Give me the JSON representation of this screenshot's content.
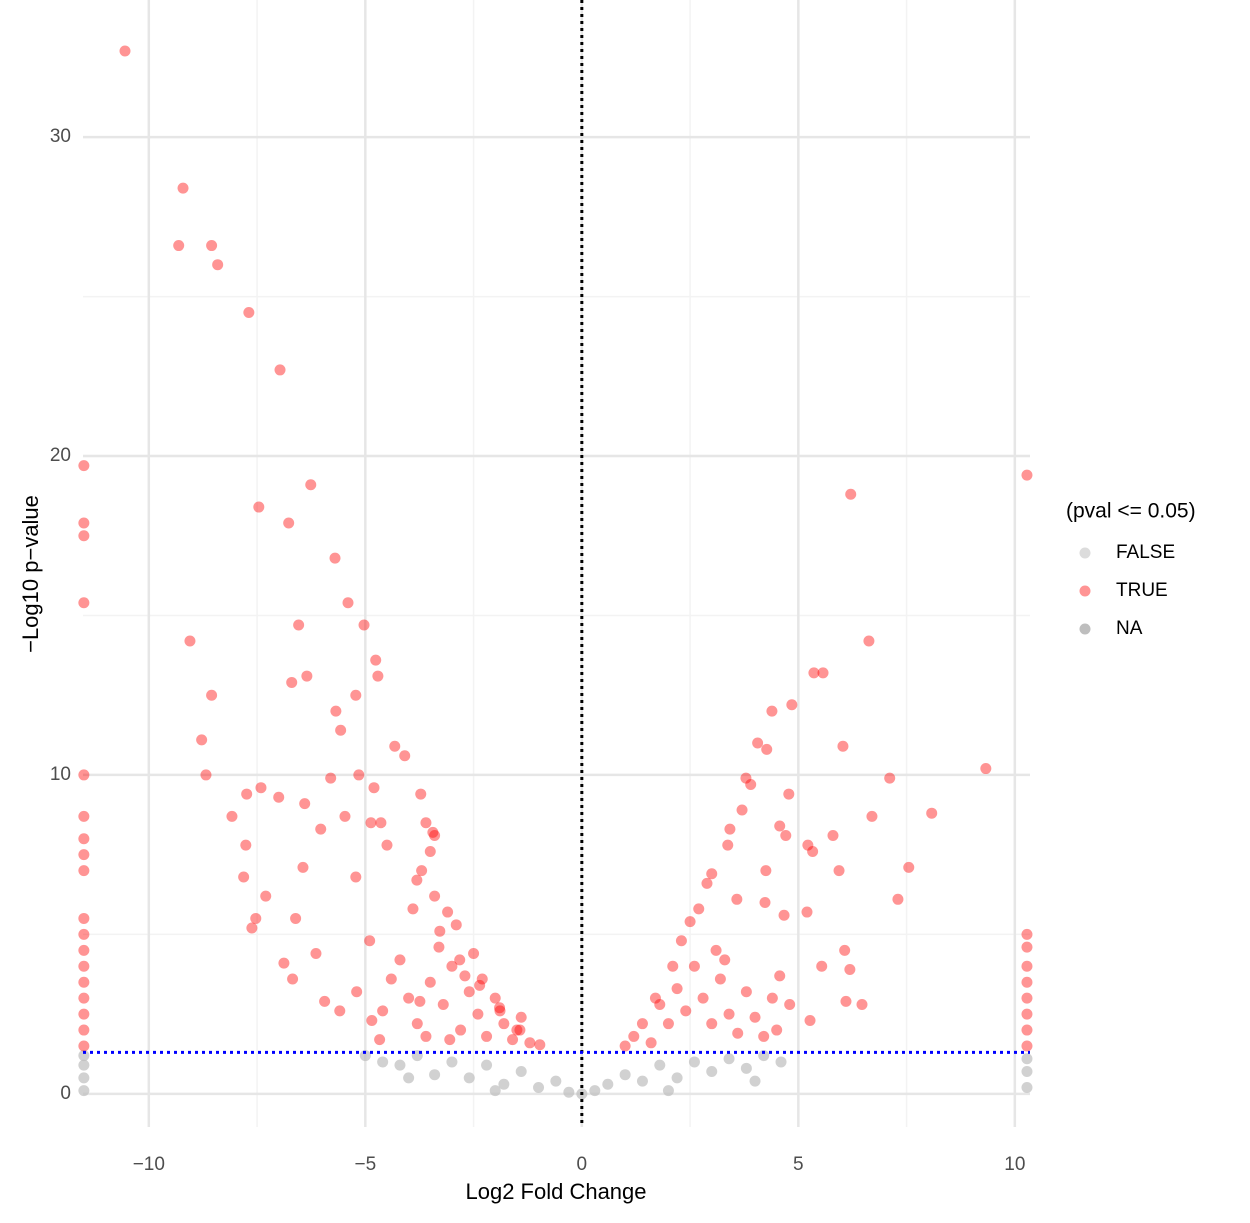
{
  "chart_data": {
    "type": "scatter",
    "x_label": "Log2 Fold Change",
    "y_label": "−Log10 p−value",
    "legend_title": "(pval <= 0.05)",
    "xlim": [
      -11.52,
      10.35
    ],
    "ylim": [
      -1.04,
      34.3
    ],
    "xticks": [
      {
        "value": -10,
        "label": "−10"
      },
      {
        "value": -5,
        "label": "−5"
      },
      0,
      5,
      10
    ],
    "yticks": [
      0,
      10,
      20,
      30
    ],
    "x_minor_grid": [
      -7.5,
      -2.5,
      2.5,
      7.5
    ],
    "y_minor_grid": [
      5,
      15,
      25
    ],
    "grid": true,
    "vline": 0,
    "hline": 1.3,
    "vline_color": "#000000",
    "hline_color": "#0000ff",
    "series": [
      {
        "name": "FALSE",
        "color": "#bebebe",
        "legend_color": "#dcdcdc",
        "x": [
          -5,
          -4.6,
          -4.2,
          -3.8,
          -3.4,
          -3.0,
          -2.6,
          -2.2,
          -1.8,
          -1.4,
          -1.0,
          -0.6,
          -0.3,
          0,
          0.3,
          0.6,
          1.0,
          1.4,
          1.8,
          2.2,
          2.6,
          3.0,
          3.4,
          3.8,
          4.2,
          4.6,
          -11.5,
          -11.5,
          -11.5,
          -11.5,
          10.28,
          10.28,
          10.28,
          -2.0,
          2.0,
          -4.0,
          4.0
        ],
        "y": [
          1.2,
          1.0,
          0.9,
          1.2,
          0.6,
          1.0,
          0.5,
          0.9,
          0.3,
          0.7,
          0.2,
          0.4,
          0.05,
          0,
          0.1,
          0.3,
          0.6,
          0.4,
          0.9,
          0.5,
          1.0,
          0.7,
          1.1,
          0.8,
          1.2,
          1.0,
          0.1,
          0.5,
          0.9,
          1.2,
          0.2,
          0.7,
          1.1,
          0.1,
          0.1,
          0.5,
          0.4
        ]
      },
      {
        "name": "TRUE",
        "color": "#ff0000",
        "x": [
          -10.55,
          -9.21,
          -9.31,
          -8.55,
          -8.41,
          -7.69,
          -6.97,
          -6.26,
          -7.46,
          -6.77,
          -5.7,
          -5.4,
          -5.03,
          -6.54,
          -9.05,
          -4.76,
          -6.35,
          -6.7,
          -4.71,
          -8.55,
          -5.22,
          -5.68,
          -5.57,
          -8.78,
          -4.32,
          -4.09,
          -8.68,
          -5.15,
          -5.8,
          -7.41,
          -7.74,
          -7.0,
          -4.8,
          -3.72,
          -6.4,
          -8.08,
          -5.47,
          -4.87,
          -4.64,
          -3.6,
          -6.03,
          -3.44,
          -7.76,
          -4.5,
          -7.81,
          -7.3,
          -6.44,
          -5.22,
          -3.81,
          -7.53,
          -7.62,
          -6.61,
          -6.14,
          -6.88,
          -6.68,
          -5.94,
          -5.59,
          -4.85,
          -4.2,
          -3.28,
          -2.82,
          -2.36,
          -1.89,
          -1.43,
          -0.97,
          -3.74,
          -4.67,
          -3.05,
          -11.5,
          -11.5,
          -11.5,
          -11.5,
          -11.5,
          -11.5,
          -11.5,
          -11.5,
          -11.5,
          -11.5,
          -11.5,
          -11.5,
          -11.5,
          -11.5,
          -11.5,
          -11.5,
          -11.5,
          -11.5,
          -4.0,
          -3.8,
          -3.5,
          -3.2,
          -3.0,
          -2.8,
          -2.6,
          -2.4,
          -2.2,
          -2.0,
          -1.8,
          -1.6,
          -1.4,
          -1.2,
          -3.6,
          -3.3,
          -2.9,
          -2.5,
          -4.4,
          -4.6,
          -3.9,
          -3.4,
          -3.1,
          -2.7,
          -2.3,
          -1.9,
          -1.5,
          -5.2,
          -4.9,
          -3.7,
          -3.5,
          -3.4,
          6.21,
          10.28,
          6.63,
          5.36,
          5.57,
          4.85,
          4.39,
          4.06,
          4.27,
          6.03,
          9.33,
          3.79,
          3.9,
          7.11,
          4.78,
          3.7,
          8.08,
          6.7,
          4.57,
          3.42,
          4.71,
          5.8,
          5.22,
          3.37,
          5.33,
          7.55,
          5.94,
          4.25,
          3.0,
          2.89,
          7.3,
          3.58,
          4.23,
          5.2,
          4.67,
          6.07,
          5.54,
          6.19,
          4.57,
          4.8,
          6.1,
          6.47,
          5.27,
          10.28,
          10.28,
          10.28,
          10.28,
          10.28,
          10.28,
          10.28,
          10.28,
          1.0,
          1.2,
          1.4,
          1.6,
          1.8,
          2.0,
          2.2,
          2.4,
          2.6,
          2.8,
          3.0,
          3.2,
          3.4,
          3.6,
          3.8,
          4.0,
          4.2,
          4.5,
          2.3,
          2.5,
          2.7,
          3.1,
          1.7,
          2.1,
          3.3,
          4.4
        ],
        "y": [
          32.7,
          28.4,
          26.6,
          26.6,
          26.0,
          24.5,
          22.7,
          19.1,
          18.4,
          17.9,
          16.8,
          15.4,
          14.7,
          14.7,
          14.2,
          13.6,
          13.1,
          12.9,
          13.1,
          12.5,
          12.5,
          12.0,
          11.4,
          11.1,
          10.9,
          10.6,
          10.0,
          10.0,
          9.9,
          9.6,
          9.4,
          9.3,
          9.6,
          9.4,
          9.1,
          8.7,
          8.7,
          8.5,
          8.5,
          8.5,
          8.3,
          8.2,
          7.8,
          7.8,
          6.8,
          6.2,
          7.1,
          6.8,
          6.7,
          5.5,
          5.2,
          5.5,
          4.4,
          4.1,
          3.6,
          2.9,
          2.6,
          2.3,
          4.2,
          5.1,
          4.2,
          3.4,
          2.6,
          2.0,
          1.54,
          2.9,
          1.7,
          1.7,
          19.7,
          17.9,
          17.5,
          15.4,
          10.0,
          8.7,
          8.0,
          7.5,
          7.0,
          5.5,
          5.0,
          4.5,
          4.0,
          3.5,
          3.0,
          2.5,
          2.0,
          1.5,
          3.0,
          2.2,
          3.5,
          2.8,
          4.0,
          2.0,
          3.2,
          2.5,
          1.8,
          3.0,
          2.2,
          1.7,
          2.4,
          1.6,
          1.8,
          4.6,
          5.3,
          4.4,
          3.6,
          2.6,
          5.8,
          6.2,
          5.7,
          3.7,
          3.6,
          2.7,
          2.0,
          3.2,
          4.8,
          7.0,
          7.6,
          8.1,
          18.8,
          19.4,
          14.2,
          13.2,
          13.2,
          12.2,
          12.0,
          11.0,
          10.8,
          10.9,
          10.2,
          9.9,
          9.7,
          9.9,
          9.4,
          8.9,
          8.8,
          8.7,
          8.4,
          8.3,
          8.1,
          8.1,
          7.8,
          7.8,
          7.6,
          7.1,
          7.0,
          7.0,
          6.9,
          6.6,
          6.1,
          6.1,
          6.0,
          5.7,
          5.6,
          4.5,
          4.0,
          3.9,
          3.7,
          2.8,
          2.9,
          2.8,
          2.3,
          5.0,
          4.6,
          4.0,
          3.5,
          3.0,
          2.5,
          2.0,
          1.5,
          1.5,
          1.8,
          2.2,
          1.6,
          2.8,
          2.2,
          3.3,
          2.6,
          4.0,
          3.0,
          2.2,
          3.6,
          2.5,
          1.9,
          3.2,
          2.4,
          1.8,
          2.0,
          4.8,
          5.4,
          5.8,
          4.5,
          3.0,
          4.0,
          4.2,
          3.0
        ]
      },
      {
        "name": "NA",
        "color": "#bebebe",
        "x": [],
        "y": []
      }
    ]
  }
}
